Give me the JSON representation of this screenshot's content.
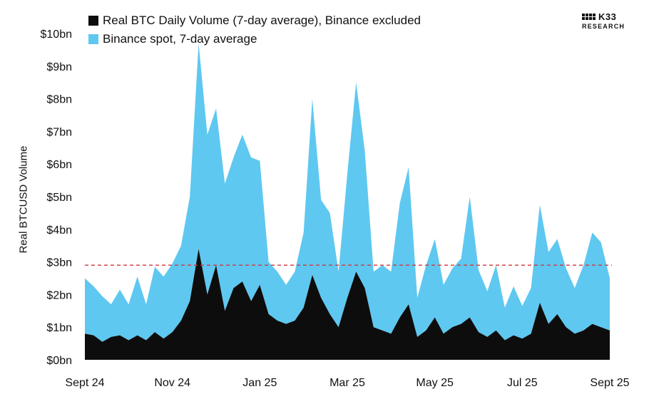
{
  "colors": {
    "binance": "#5ec8f0",
    "real": "#0d0d0d",
    "ref_line": "#d2333a"
  },
  "logo": {
    "brand": "K33",
    "sub": "RESEARCH"
  },
  "chart_data": {
    "type": "area",
    "legend": [
      {
        "label": "Real BTC Daily Volume (7-day average), Binance excluded",
        "color": "#0d0d0d"
      },
      {
        "label": "Binance spot, 7-day average",
        "color": "#5ec8f0"
      }
    ],
    "ylabel": "Real BTCUSD Volume",
    "xlabel": "",
    "ylim": [
      0,
      10
    ],
    "yticks": [
      "$0bn",
      "$1bn",
      "$2bn",
      "$3bn",
      "$4bn",
      "$5bn",
      "$6bn",
      "$7bn",
      "$8bn",
      "$9bn",
      "$10bn"
    ],
    "xticks": [
      "Sept 24",
      "Nov 24",
      "Jan 25",
      "Mar 25",
      "May 25",
      "Jul 25",
      "Sept 25"
    ],
    "xlim": [
      0,
      12
    ],
    "reference_line": {
      "value": 2.9,
      "style": "dashed"
    },
    "series": [
      {
        "name": "Real BTC Daily Volume (7-day average), Binance excluded",
        "x": [
          0,
          0.2,
          0.4,
          0.6,
          0.8,
          1.0,
          1.2,
          1.4,
          1.6,
          1.8,
          2.0,
          2.2,
          2.4,
          2.6,
          2.8,
          3.0,
          3.2,
          3.4,
          3.6,
          3.8,
          4.0,
          4.2,
          4.4,
          4.6,
          4.8,
          5.0,
          5.2,
          5.4,
          5.6,
          5.8,
          6.0,
          6.2,
          6.4,
          6.6,
          6.8,
          7.0,
          7.2,
          7.4,
          7.6,
          7.8,
          8.0,
          8.2,
          8.4,
          8.6,
          8.8,
          9.0,
          9.2,
          9.4,
          9.6,
          9.8,
          10.0,
          10.2,
          10.4,
          10.6,
          10.8,
          11.0,
          11.2,
          11.4,
          11.6,
          11.8,
          12.0
        ],
        "values": [
          0.8,
          0.75,
          0.55,
          0.7,
          0.75,
          0.6,
          0.75,
          0.6,
          0.85,
          0.65,
          0.85,
          1.2,
          1.8,
          3.4,
          2.0,
          2.9,
          1.5,
          2.2,
          2.4,
          1.8,
          2.3,
          1.4,
          1.2,
          1.1,
          1.2,
          1.6,
          2.6,
          1.9,
          1.4,
          1.0,
          1.9,
          2.7,
          2.2,
          1.0,
          0.9,
          0.8,
          1.3,
          1.7,
          0.7,
          0.9,
          1.3,
          0.8,
          1.0,
          1.1,
          1.3,
          0.85,
          0.7,
          0.9,
          0.6,
          0.75,
          0.65,
          0.8,
          1.75,
          1.1,
          1.4,
          1.0,
          0.8,
          0.9,
          1.1,
          1.0,
          0.9
        ]
      },
      {
        "name": "Binance spot, 7-day average",
        "x": [
          0,
          0.2,
          0.4,
          0.6,
          0.8,
          1.0,
          1.2,
          1.4,
          1.6,
          1.8,
          2.0,
          2.2,
          2.4,
          2.6,
          2.8,
          3.0,
          3.2,
          3.4,
          3.6,
          3.8,
          4.0,
          4.2,
          4.4,
          4.6,
          4.8,
          5.0,
          5.2,
          5.4,
          5.6,
          5.8,
          6.0,
          6.2,
          6.4,
          6.6,
          6.8,
          7.0,
          7.2,
          7.4,
          7.6,
          7.8,
          8.0,
          8.2,
          8.4,
          8.6,
          8.8,
          9.0,
          9.2,
          9.4,
          9.6,
          9.8,
          10.0,
          10.2,
          10.4,
          10.6,
          10.8,
          11.0,
          11.2,
          11.4,
          11.6,
          11.8,
          12.0
        ],
        "values": [
          1.7,
          1.5,
          1.4,
          1.0,
          1.4,
          1.1,
          1.8,
          1.1,
          2.0,
          1.9,
          2.1,
          2.3,
          3.2,
          6.3,
          4.9,
          4.8,
          3.9,
          4.0,
          4.5,
          4.4,
          3.8,
          1.6,
          1.5,
          1.2,
          1.5,
          2.3,
          5.4,
          3.0,
          3.1,
          1.7,
          3.8,
          5.8,
          4.2,
          1.7,
          2.0,
          1.9,
          3.5,
          4.2,
          1.2,
          2.0,
          2.4,
          1.5,
          1.8,
          2.0,
          3.7,
          1.9,
          1.4,
          2.0,
          1.0,
          1.5,
          1.0,
          1.4,
          3.0,
          2.2,
          2.3,
          1.8,
          1.4,
          2.0,
          2.8,
          2.6,
          1.6
        ]
      }
    ]
  }
}
